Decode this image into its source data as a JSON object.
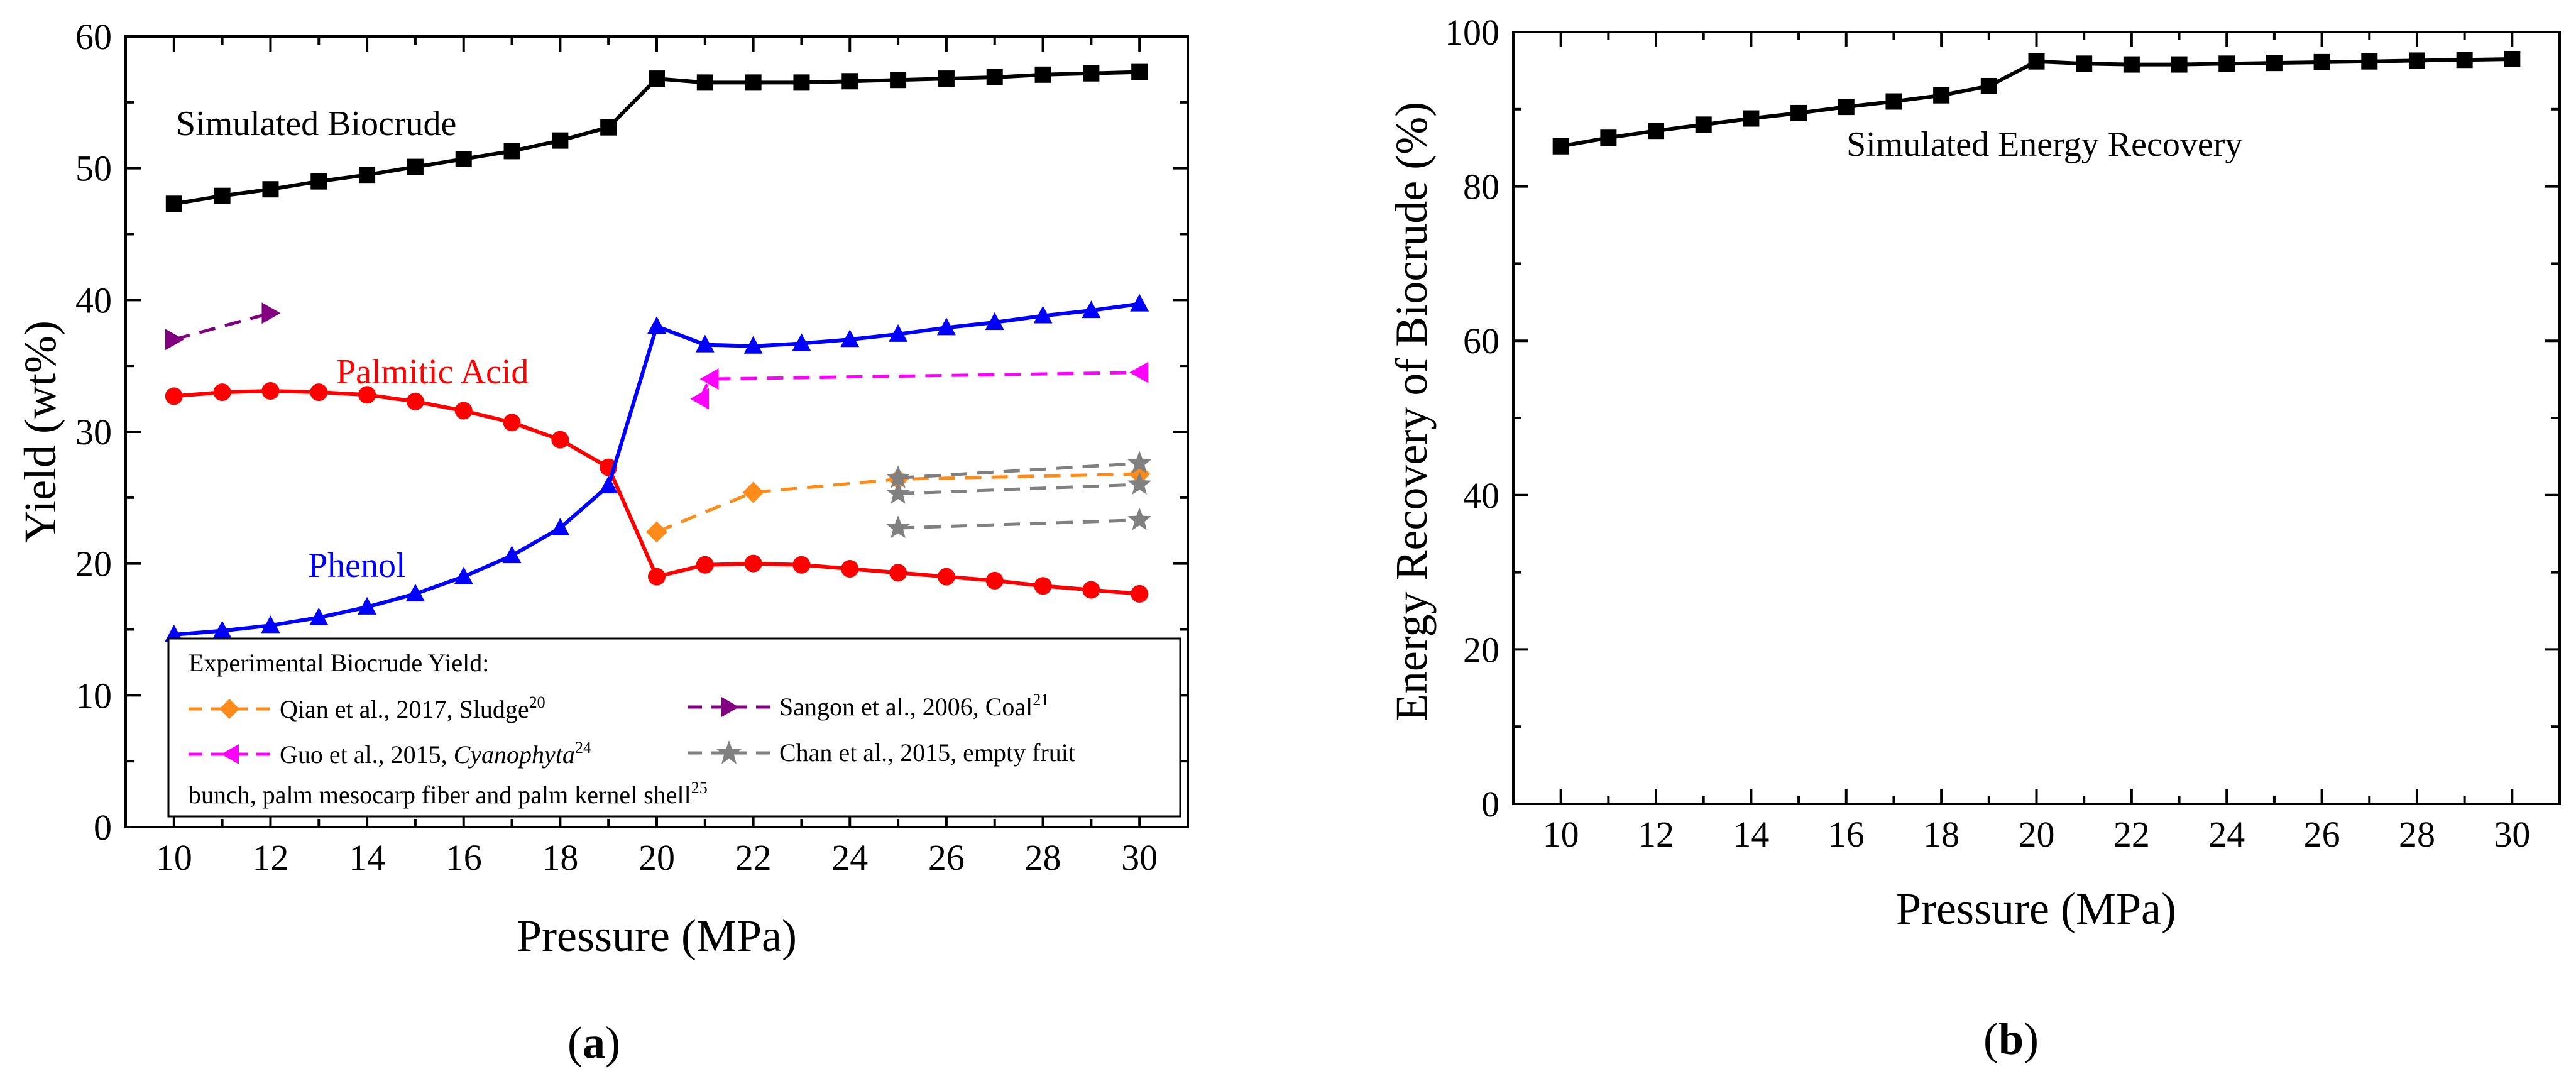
{
  "colors": {
    "simulated_biocrude": "#000000",
    "palmitic_acid": "#ff0000",
    "phenol": "#0000ff",
    "qian": "#ff8c1a",
    "sangon": "#800080",
    "guo": "#ff00ff",
    "chan": "#808080"
  },
  "chart_data": [
    {
      "id": "a",
      "type": "line",
      "caption_open": "(",
      "caption_letter": "a",
      "caption_close": ")",
      "xlabel": "Pressure (MPa)",
      "ylabel": "Yield (wt%)",
      "xlim": [
        9,
        31
      ],
      "ylim": [
        0,
        60
      ],
      "xticks": [
        10,
        12,
        14,
        16,
        18,
        20,
        22,
        24,
        26,
        28,
        30
      ],
      "yticks": [
        0,
        10,
        20,
        30,
        40,
        50,
        60
      ],
      "annotations": [
        {
          "key": "biocrude",
          "text": "Simulated Biocrude",
          "color": "#000000"
        },
        {
          "key": "palmitic",
          "text": "Palmitic Acid",
          "color": "#ff0000"
        },
        {
          "key": "phenol",
          "text": "Phenol",
          "color": "#0000ff"
        }
      ],
      "series": [
        {
          "name": "Simulated Biocrude",
          "color": "#000000",
          "marker": "square",
          "dashed": false,
          "x": [
            10,
            11,
            12,
            13,
            14,
            15,
            16,
            17,
            18,
            19,
            20,
            21,
            22,
            23,
            24,
            25,
            26,
            27,
            28,
            29,
            30
          ],
          "y": [
            47.3,
            47.9,
            48.4,
            49.0,
            49.5,
            50.1,
            50.7,
            51.3,
            52.1,
            53.1,
            56.8,
            56.5,
            56.5,
            56.5,
            56.6,
            56.7,
            56.8,
            56.9,
            57.1,
            57.2,
            57.3
          ]
        },
        {
          "name": "Palmitic Acid",
          "color": "#ff0000",
          "marker": "circle",
          "dashed": false,
          "x": [
            10,
            11,
            12,
            13,
            14,
            15,
            16,
            17,
            18,
            19,
            20,
            21,
            22,
            23,
            24,
            25,
            26,
            27,
            28,
            29,
            30
          ],
          "y": [
            32.7,
            33.0,
            33.1,
            33.0,
            32.8,
            32.3,
            31.6,
            30.7,
            29.4,
            27.3,
            19.0,
            19.9,
            20.0,
            19.9,
            19.6,
            19.3,
            19.0,
            18.7,
            18.3,
            18.0,
            17.7
          ]
        },
        {
          "name": "Phenol",
          "color": "#0000ff",
          "marker": "triangle-up",
          "dashed": false,
          "x": [
            10,
            11,
            12,
            13,
            14,
            15,
            16,
            17,
            18,
            19,
            20,
            21,
            22,
            23,
            24,
            25,
            26,
            27,
            28,
            29,
            30
          ],
          "y": [
            14.6,
            14.9,
            15.3,
            15.9,
            16.7,
            17.7,
            19.0,
            20.6,
            22.7,
            25.9,
            38.0,
            36.6,
            36.5,
            36.7,
            37.0,
            37.4,
            37.9,
            38.3,
            38.8,
            39.2,
            39.7
          ]
        },
        {
          "name": "Qian et al., 2017, Sludge",
          "color": "#ff8c1a",
          "marker": "diamond",
          "dashed": true,
          "x": [
            20,
            22,
            25,
            30
          ],
          "y": [
            22.4,
            25.4,
            26.4,
            26.8
          ]
        },
        {
          "name": "Sangon et al., 2006, Coal",
          "color": "#800080",
          "marker": "triangle-right",
          "dashed": true,
          "x": [
            10,
            12
          ],
          "y": [
            37.0,
            39.0
          ]
        },
        {
          "name": "Guo et al., 2015, Cyanophyta",
          "color": "#ff00ff",
          "marker": "triangle-left",
          "dashed": true,
          "x": [
            20.9,
            21.1,
            30
          ],
          "y": [
            32.5,
            34.0,
            34.5
          ]
        },
        {
          "name": "Chan et al., 2015, empty fruit bunch, palm mesocarp fiber and palm kernel shell (1)",
          "color": "#808080",
          "marker": "star",
          "dashed": true,
          "x": [
            25,
            30
          ],
          "y": [
            26.5,
            27.6
          ]
        },
        {
          "name": "Chan et al., 2015, empty fruit bunch, palm mesocarp fiber and palm kernel shell (2)",
          "color": "#808080",
          "marker": "star",
          "dashed": true,
          "x": [
            25,
            30
          ],
          "y": [
            25.3,
            26.0
          ]
        },
        {
          "name": "Chan et al., 2015, empty fruit bunch, palm mesocarp fiber and palm kernel shell (3)",
          "color": "#808080",
          "marker": "star",
          "dashed": true,
          "x": [
            25,
            30
          ],
          "y": [
            22.7,
            23.3
          ]
        }
      ],
      "legend": {
        "title": "Experimental Biocrude Yield:",
        "placement": "bottom-left inside plot",
        "entries": [
          {
            "text": "Qian et al., 2017, Sludge",
            "sup": "20",
            "color": "#ff8c1a",
            "marker": "diamond"
          },
          {
            "text": "Sangon et al., 2006, Coal",
            "sup": "21",
            "color": "#800080",
            "marker": "triangle-right"
          },
          {
            "text_prefix": "Guo et al., 2015, ",
            "text_italic": "Cyanophyta",
            "sup": "24",
            "color": "#ff00ff",
            "marker": "triangle-left"
          },
          {
            "text": "Chan et al., 2015, empty fruit",
            "color": "#808080",
            "marker": "star"
          }
        ],
        "continuation": "bunch, palm mesocarp fiber and palm kernel shell",
        "continuation_sup": "25"
      }
    },
    {
      "id": "b",
      "type": "line",
      "caption_open": "(",
      "caption_letter": "b",
      "caption_close": ")",
      "xlabel": "Pressure (MPa)",
      "ylabel": "Energy Recovery of Biocrude (%)",
      "xlim": [
        9,
        31
      ],
      "ylim": [
        0,
        100
      ],
      "xticks": [
        10,
        12,
        14,
        16,
        18,
        20,
        22,
        24,
        26,
        28,
        30
      ],
      "yticks": [
        0,
        20,
        40,
        60,
        80,
        100
      ],
      "annotations": [
        {
          "key": "energy",
          "text": "Simulated Energy Recovery",
          "color": "#000000"
        }
      ],
      "series": [
        {
          "name": "Simulated Energy Recovery",
          "color": "#000000",
          "marker": "square",
          "dashed": false,
          "x": [
            10,
            11,
            12,
            13,
            14,
            15,
            16,
            17,
            18,
            19,
            20,
            21,
            22,
            23,
            24,
            25,
            26,
            27,
            28,
            29,
            30
          ],
          "y": [
            85.2,
            86.3,
            87.2,
            88.0,
            88.8,
            89.5,
            90.3,
            91.0,
            91.8,
            93.0,
            96.2,
            95.9,
            95.8,
            95.8,
            95.9,
            96.0,
            96.1,
            96.2,
            96.3,
            96.4,
            96.5
          ]
        }
      ]
    }
  ]
}
